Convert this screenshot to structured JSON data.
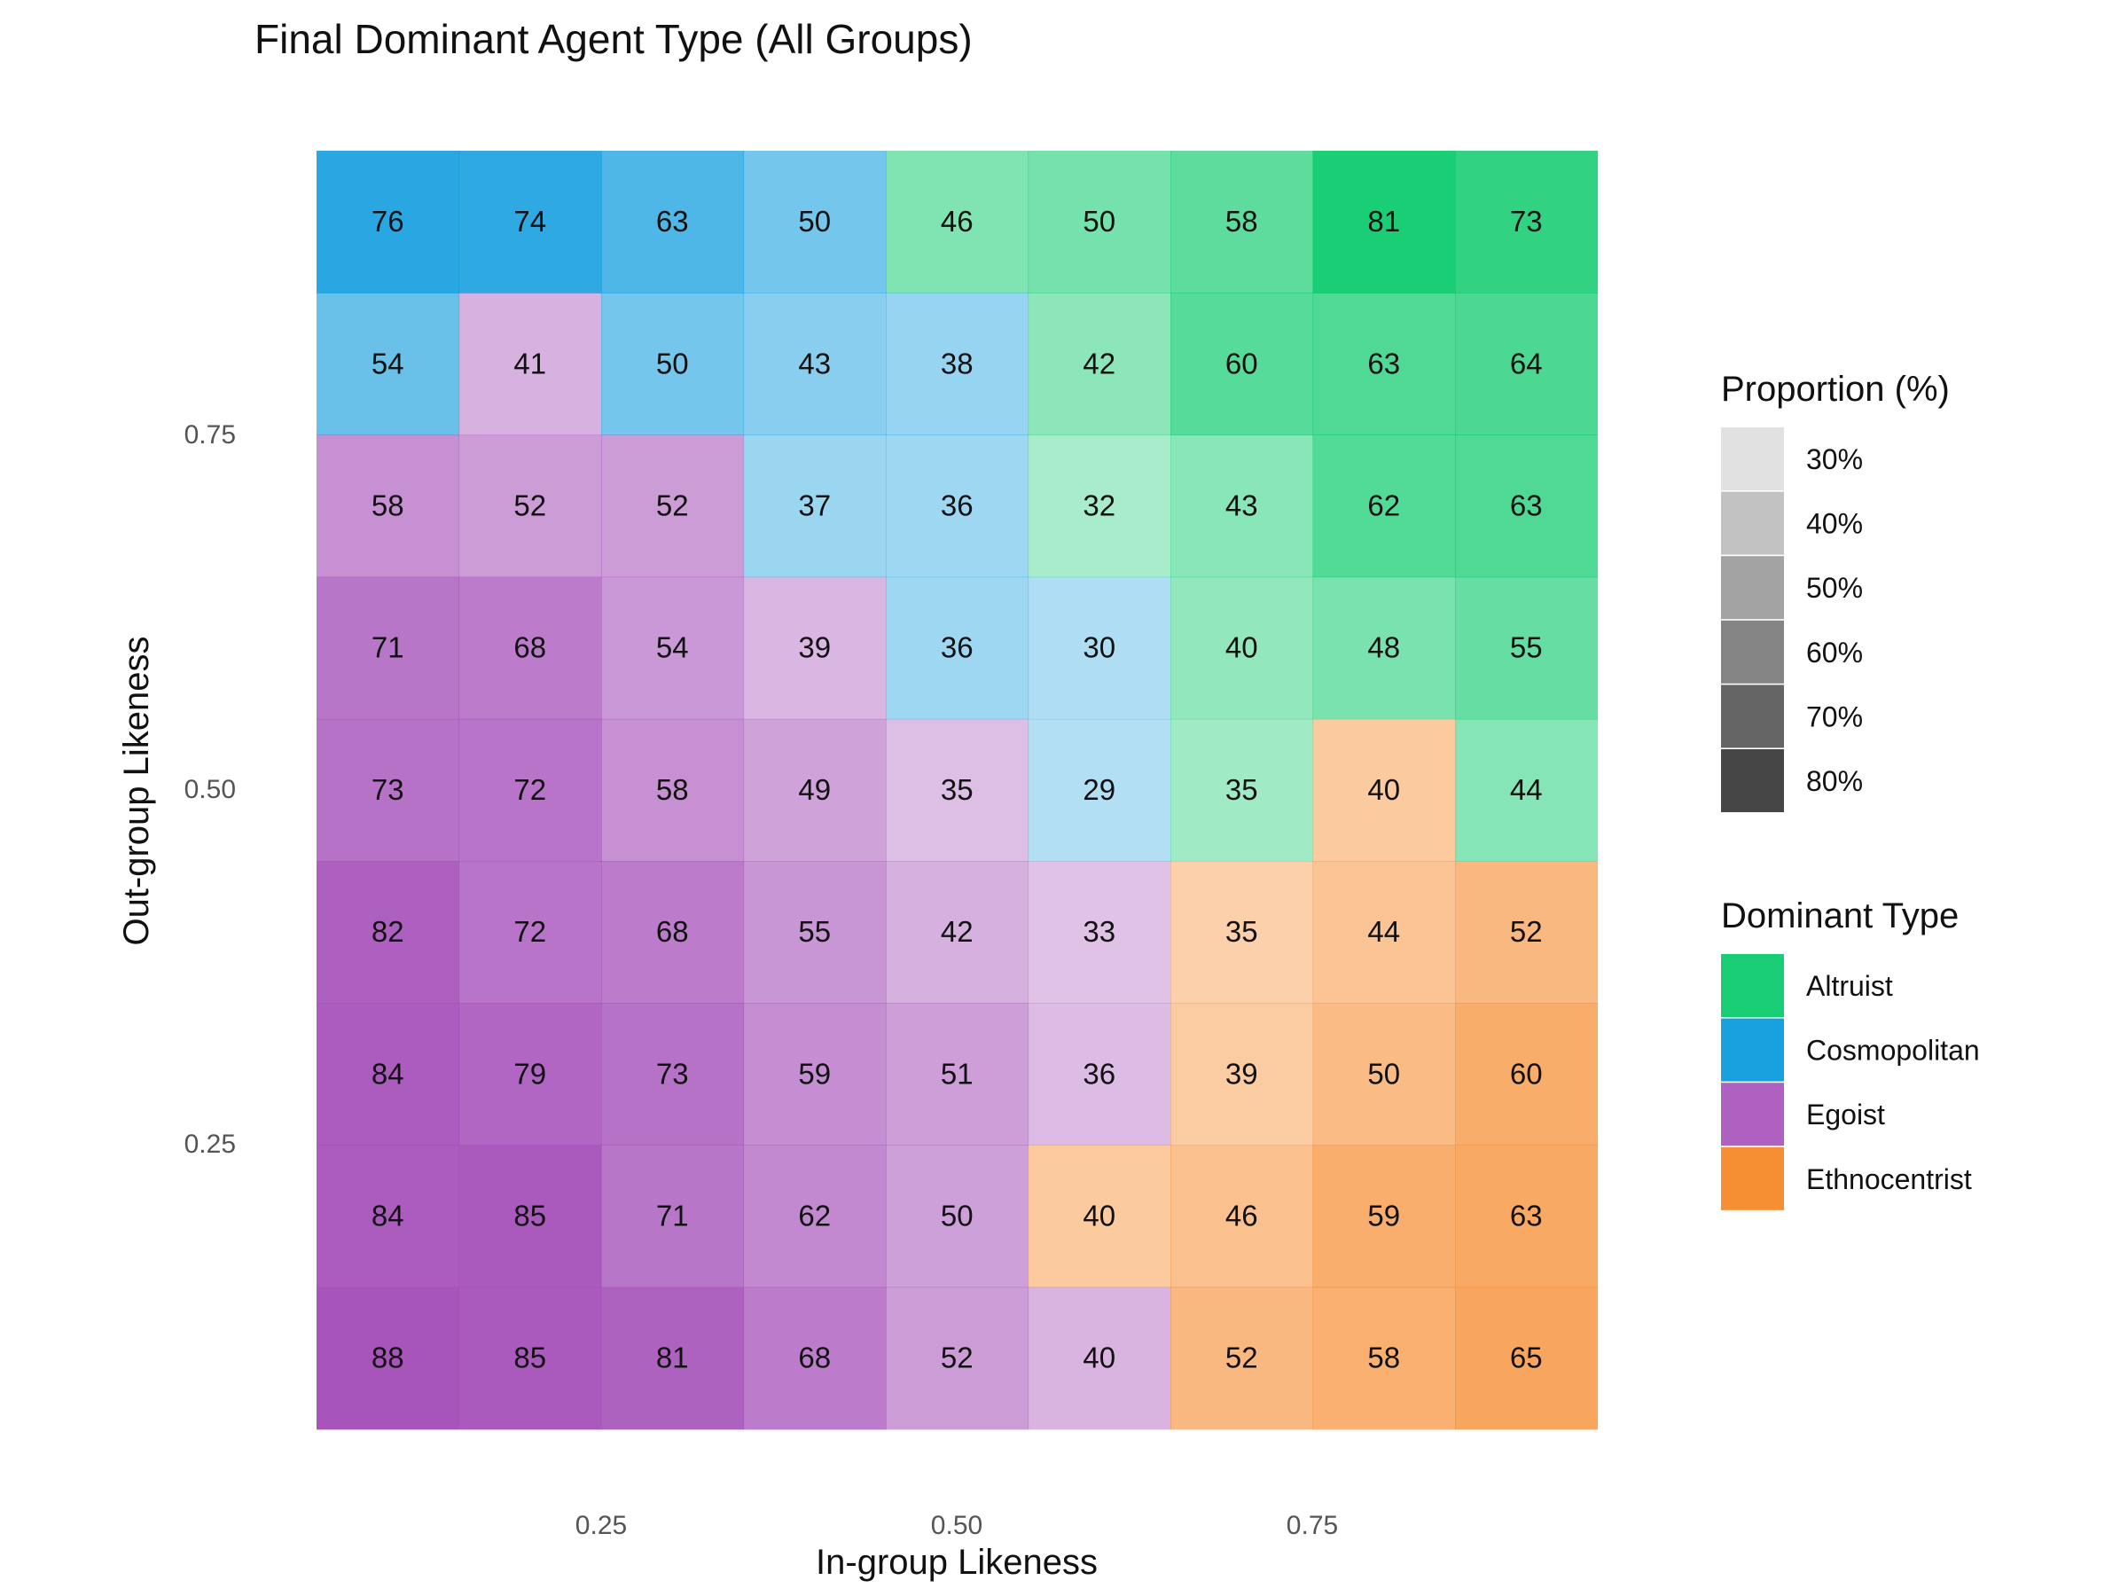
{
  "chart_data": {
    "type": "heatmap",
    "title": "Final Dominant Agent Type (All Groups)",
    "xlabel": "In-group Likeness",
    "ylabel": "Out-group Likeness",
    "x_ticks": [
      "0.25",
      "0.50",
      "0.75"
    ],
    "y_ticks": [
      "0.75",
      "0.50",
      "0.25"
    ],
    "grid": false,
    "columns": 9,
    "rows_top_to_bottom": [
      {
        "values": [
          76,
          74,
          63,
          50,
          46,
          50,
          58,
          81,
          73
        ],
        "types": [
          "Cosmopolitan",
          "Cosmopolitan",
          "Cosmopolitan",
          "Cosmopolitan",
          "Altruist",
          "Altruist",
          "Altruist",
          "Altruist",
          "Altruist"
        ]
      },
      {
        "values": [
          54,
          41,
          50,
          43,
          38,
          42,
          60,
          63,
          64
        ],
        "types": [
          "Cosmopolitan",
          "Egoist",
          "Cosmopolitan",
          "Cosmopolitan",
          "Cosmopolitan",
          "Altruist",
          "Altruist",
          "Altruist",
          "Altruist"
        ]
      },
      {
        "values": [
          58,
          52,
          52,
          37,
          36,
          32,
          43,
          62,
          63
        ],
        "types": [
          "Egoist",
          "Egoist",
          "Egoist",
          "Cosmopolitan",
          "Cosmopolitan",
          "Altruist",
          "Altruist",
          "Altruist",
          "Altruist"
        ]
      },
      {
        "values": [
          71,
          68,
          54,
          39,
          36,
          30,
          40,
          48,
          55
        ],
        "types": [
          "Egoist",
          "Egoist",
          "Egoist",
          "Egoist",
          "Cosmopolitan",
          "Cosmopolitan",
          "Altruist",
          "Altruist",
          "Altruist"
        ]
      },
      {
        "values": [
          73,
          72,
          58,
          49,
          35,
          29,
          35,
          40,
          44
        ],
        "types": [
          "Egoist",
          "Egoist",
          "Egoist",
          "Egoist",
          "Egoist",
          "Cosmopolitan",
          "Altruist",
          "Ethnocentrist",
          "Altruist"
        ]
      },
      {
        "values": [
          82,
          72,
          68,
          55,
          42,
          33,
          35,
          44,
          52
        ],
        "types": [
          "Egoist",
          "Egoist",
          "Egoist",
          "Egoist",
          "Egoist",
          "Egoist",
          "Ethnocentrist",
          "Ethnocentrist",
          "Ethnocentrist"
        ]
      },
      {
        "values": [
          84,
          79,
          73,
          59,
          51,
          36,
          39,
          50,
          60
        ],
        "types": [
          "Egoist",
          "Egoist",
          "Egoist",
          "Egoist",
          "Egoist",
          "Egoist",
          "Ethnocentrist",
          "Ethnocentrist",
          "Ethnocentrist"
        ]
      },
      {
        "values": [
          84,
          85,
          71,
          62,
          50,
          40,
          46,
          59,
          63
        ],
        "types": [
          "Egoist",
          "Egoist",
          "Egoist",
          "Egoist",
          "Egoist",
          "Ethnocentrist",
          "Ethnocentrist",
          "Ethnocentrist",
          "Ethnocentrist"
        ]
      },
      {
        "values": [
          88,
          85,
          81,
          68,
          52,
          40,
          52,
          58,
          65
        ],
        "types": [
          "Egoist",
          "Egoist",
          "Egoist",
          "Egoist",
          "Egoist",
          "Egoist",
          "Ethnocentrist",
          "Ethnocentrist",
          "Ethnocentrist"
        ]
      }
    ],
    "legend_placement": "right",
    "legend_proportion": {
      "title": "Proportion (%)",
      "items": [
        {
          "label": "30%",
          "value": 30
        },
        {
          "label": "40%",
          "value": 40
        },
        {
          "label": "50%",
          "value": 50
        },
        {
          "label": "60%",
          "value": 60
        },
        {
          "label": "70%",
          "value": 70
        },
        {
          "label": "80%",
          "value": 80
        }
      ]
    },
    "legend_type": {
      "title": "Dominant Type",
      "items": [
        {
          "label": "Altruist",
          "color": "#00C865"
        },
        {
          "label": "Cosmopolitan",
          "color": "#0096DC"
        },
        {
          "label": "Egoist",
          "color": "#A550B9"
        },
        {
          "label": "Ethnocentrist",
          "color": "#F5821E"
        }
      ]
    },
    "alpha_range": [
      20,
      90
    ]
  }
}
